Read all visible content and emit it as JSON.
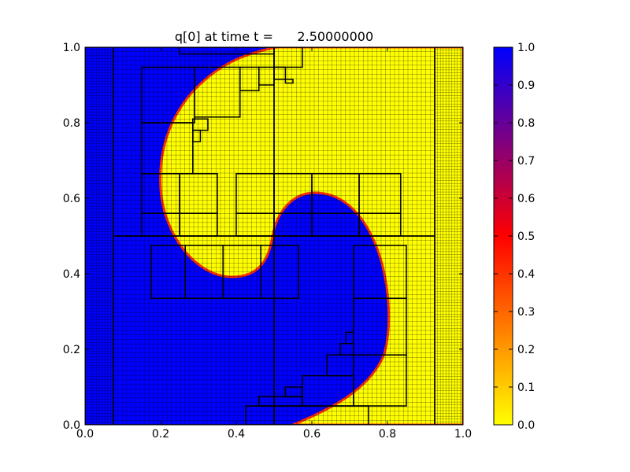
{
  "chart_data": {
    "type": "heatmap",
    "title": "q[0] at time t =      2.50000000",
    "xlabel": "",
    "ylabel": "",
    "xlim": [
      0.0,
      1.0
    ],
    "ylim": [
      0.0,
      1.0
    ],
    "xticks": [
      "0.0",
      "0.2",
      "0.4",
      "0.6",
      "0.8",
      "1.0"
    ],
    "yticks": [
      "0.0",
      "0.2",
      "0.4",
      "0.6",
      "0.8",
      "1.0"
    ],
    "colorbar": {
      "range": [
        0.0,
        1.0
      ],
      "ticks": [
        "0.0",
        "0.1",
        "0.2",
        "0.3",
        "0.4",
        "0.5",
        "0.6",
        "0.7",
        "0.8",
        "0.9",
        "1.0"
      ],
      "stops": [
        {
          "value": 0.0,
          "color": "#ffff00"
        },
        {
          "value": 0.5,
          "color": "#ff0000"
        },
        {
          "value": 1.0,
          "color": "#0000ff"
        }
      ]
    },
    "field": {
      "high_value": 1.0,
      "low_value": 0.0,
      "feature": "yellow tongue (q=0) wound into a blue region (q=1); blue spiral arm in lower right"
    },
    "amr_patches": [
      {
        "x0": 0.0,
        "x1": 0.075,
        "y0": 0.0,
        "y1": 1.0,
        "cells": 10
      },
      {
        "x0": 0.075,
        "x1": 0.5,
        "y0": 0.0,
        "y1": 0.5,
        "cells": 36
      },
      {
        "x0": 0.075,
        "x1": 0.5,
        "y0": 0.5,
        "y1": 1.0,
        "cells": 36
      },
      {
        "x0": 0.5,
        "x1": 0.925,
        "y0": 0.0,
        "y1": 0.5,
        "cells": 36
      },
      {
        "x0": 0.5,
        "x1": 0.925,
        "y0": 0.5,
        "y1": 1.0,
        "cells": 36
      },
      {
        "x0": 0.925,
        "x1": 1.0,
        "y0": 0.0,
        "y1": 1.0,
        "cells": 10
      }
    ],
    "fine_patches": [
      [
        0.25,
        0.5,
        0.982,
        1.0
      ],
      [
        0.5,
        0.575,
        0.947,
        1.0
      ],
      [
        0.15,
        0.29,
        0.8,
        0.947
      ],
      [
        0.29,
        0.41,
        0.815,
        0.947
      ],
      [
        0.41,
        0.46,
        0.885,
        0.947
      ],
      [
        0.46,
        0.5,
        0.9,
        0.947
      ],
      [
        0.5,
        0.53,
        0.915,
        0.947
      ],
      [
        0.53,
        0.55,
        0.905,
        0.915
      ],
      [
        0.15,
        0.285,
        0.665,
        0.8
      ],
      [
        0.285,
        0.325,
        0.78,
        0.81
      ],
      [
        0.285,
        0.305,
        0.75,
        0.78
      ],
      [
        0.15,
        0.25,
        0.56,
        0.665
      ],
      [
        0.25,
        0.35,
        0.56,
        0.665
      ],
      [
        0.15,
        0.25,
        0.5,
        0.56
      ],
      [
        0.25,
        0.35,
        0.5,
        0.56
      ],
      [
        0.4,
        0.5,
        0.56,
        0.665
      ],
      [
        0.5,
        0.6,
        0.56,
        0.665
      ],
      [
        0.6,
        0.725,
        0.56,
        0.665
      ],
      [
        0.725,
        0.835,
        0.56,
        0.665
      ],
      [
        0.4,
        0.5,
        0.5,
        0.56
      ],
      [
        0.5,
        0.6,
        0.5,
        0.56
      ],
      [
        0.6,
        0.725,
        0.5,
        0.56
      ],
      [
        0.725,
        0.835,
        0.5,
        0.56
      ],
      [
        0.175,
        0.265,
        0.335,
        0.475
      ],
      [
        0.265,
        0.365,
        0.335,
        0.475
      ],
      [
        0.365,
        0.465,
        0.335,
        0.475
      ],
      [
        0.465,
        0.565,
        0.335,
        0.475
      ],
      [
        0.71,
        0.85,
        0.335,
        0.475
      ],
      [
        0.71,
        0.85,
        0.185,
        0.335
      ],
      [
        0.71,
        0.85,
        0.05,
        0.185
      ],
      [
        0.64,
        0.71,
        0.13,
        0.185
      ],
      [
        0.675,
        0.71,
        0.185,
        0.215
      ],
      [
        0.69,
        0.71,
        0.215,
        0.245
      ],
      [
        0.575,
        0.71,
        0.05,
        0.13
      ],
      [
        0.53,
        0.575,
        0.075,
        0.1
      ],
      [
        0.5,
        0.575,
        0.05,
        0.075
      ],
      [
        0.46,
        0.5,
        0.05,
        0.075
      ],
      [
        0.425,
        0.5,
        0.0,
        0.05
      ],
      [
        0.5,
        0.75,
        0.0,
        0.05
      ]
    ]
  }
}
